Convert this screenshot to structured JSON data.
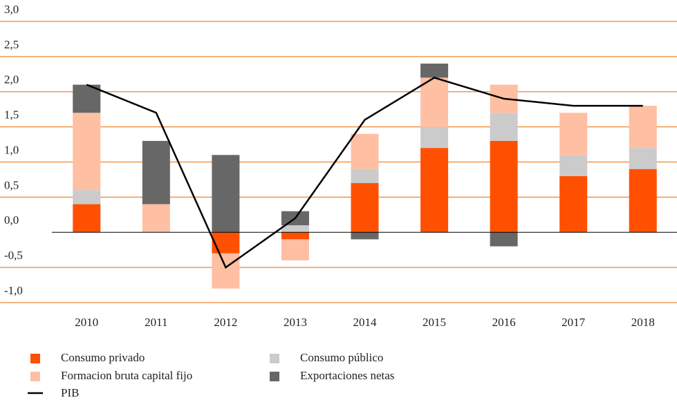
{
  "chart_data": {
    "type": "bar",
    "categories": [
      "2010",
      "2011",
      "2012",
      "2013",
      "2014",
      "2015",
      "2016",
      "2017",
      "2018"
    ],
    "series": [
      {
        "name": "Consumo privado",
        "color": "#fe5000",
        "values": [
          0.4,
          0,
          -0.3,
          -0.1,
          0.7,
          1.2,
          1.3,
          0.8,
          0.9
        ]
      },
      {
        "name": "Consumo público",
        "color": "#cbcbcb",
        "values": [
          0.2,
          0,
          0,
          0.1,
          0.2,
          0.3,
          0.4,
          0.3,
          0.3
        ]
      },
      {
        "name": "Formacion bruta capital fijo",
        "color": "#ffbfa3",
        "values": [
          1.1,
          0.4,
          -0.5,
          -0.3,
          0.5,
          0.7,
          0.4,
          0.6,
          0.6
        ]
      },
      {
        "name": "Exportaciones netas",
        "color": "#676767",
        "values": [
          0.4,
          0.9,
          1.1,
          0.2,
          -0.1,
          0.2,
          -0.2,
          0,
          0
        ]
      },
      {
        "name": "PIB",
        "type": "line",
        "color": "#000000",
        "values": [
          2.1,
          1.7,
          -0.5,
          0.2,
          1.6,
          2.2,
          1.9,
          1.8,
          1.8
        ]
      }
    ],
    "ylim": [
      -1,
      3
    ],
    "yticks": [
      {
        "value": -1,
        "label": "-1,0"
      },
      {
        "value": -0.5,
        "label": "-0,5"
      },
      {
        "value": 0,
        "label": "0,0"
      },
      {
        "value": 0.5,
        "label": "0,5"
      },
      {
        "value": 1,
        "label": "1,0"
      },
      {
        "value": 1.5,
        "label": "1,5"
      },
      {
        "value": 2,
        "label": "2,0"
      },
      {
        "value": 2.5,
        "label": "2,5"
      },
      {
        "value": 3,
        "label": "3,0"
      }
    ],
    "grid": true,
    "stacked": true
  }
}
